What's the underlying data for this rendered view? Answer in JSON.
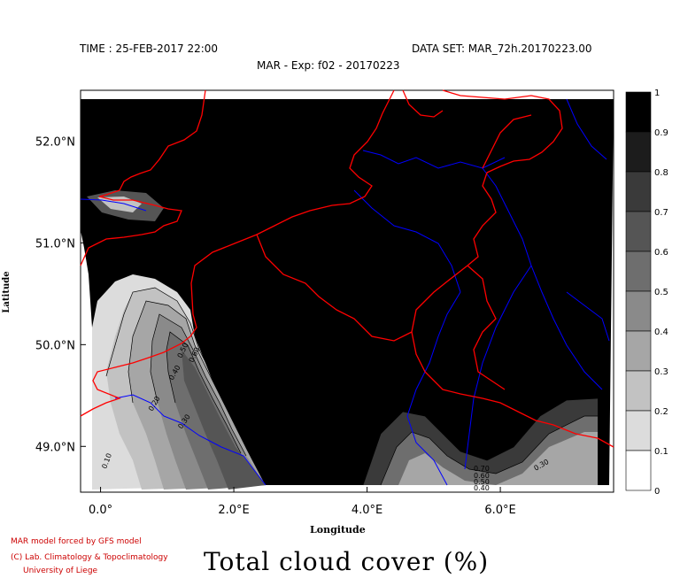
{
  "header": {
    "time": "TIME : 25-FEB-2017 22:00",
    "dataset": "DATA SET: MAR_72h.20170223.00",
    "subtitle": "MAR - Exp: f02 - 20170223"
  },
  "map": {
    "lat_ticks": [
      "52.0°N",
      "51.0°N",
      "50.0°N",
      "49.0°N"
    ],
    "lon_ticks": [
      "0.0°",
      "2.0°E",
      "4.0°E",
      "6.0°E"
    ],
    "lat_values": [
      52.0,
      51.0,
      50.0,
      49.0
    ],
    "lon_values": [
      0.0,
      2.0,
      4.0,
      6.0
    ],
    "lon_range": [
      -0.3,
      7.7
    ],
    "lat_range": [
      48.55,
      52.5
    ],
    "xlabel": "Longitude",
    "ylabel": "Latitude",
    "contour_labels": [
      "0.10",
      "0.20",
      "0.30",
      "0.40",
      "0.50",
      "0.60",
      "0.70",
      "0.60",
      "0.50",
      "0.40",
      "0.30"
    ],
    "colors": {
      "border": "#ff0000",
      "river": "#0000ff",
      "full_cover": "#000000"
    }
  },
  "colorbar": {
    "labels": [
      "1",
      "0.9",
      "0.8",
      "0.7",
      "0.6",
      "0.5",
      "0.4",
      "0.3",
      "0.2",
      "0.1",
      "0"
    ],
    "levels": [
      1.0,
      0.9,
      0.8,
      0.7,
      0.6,
      0.5,
      0.4,
      0.3,
      0.2,
      0.1,
      0.0
    ],
    "colors": [
      "#000000",
      "#1c1c1c",
      "#3a3a3a",
      "#555555",
      "#6e6e6e",
      "#8a8a8a",
      "#a6a6a6",
      "#c2c2c2",
      "#dcdcdc",
      "#ffffff"
    ]
  },
  "footer": {
    "credit1": "MAR model forced by GFS model",
    "credit2": "(C) Lab. Climatology & Topoclimatology",
    "credit3": "University of Liege",
    "title": "Total cloud cover (%)"
  }
}
